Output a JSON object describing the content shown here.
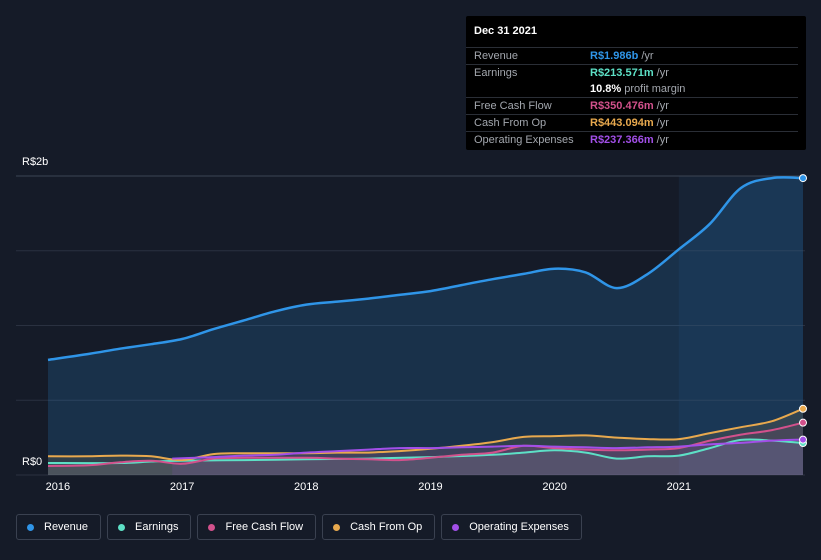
{
  "tooltip": {
    "date": "Dec 31 2021",
    "rows": [
      {
        "label": "Revenue",
        "value": "R$1.986b",
        "unit": " /yr",
        "color": "#2f95e8"
      },
      {
        "label": "Earnings",
        "value": "R$213.571m",
        "unit": " /yr",
        "color": "#5de0c6"
      },
      {
        "label": "",
        "value": "10.8%",
        "unit": " profit margin",
        "color": "#ffffff"
      },
      {
        "label": "Free Cash Flow",
        "value": "R$350.476m",
        "unit": " /yr",
        "color": "#d2518c"
      },
      {
        "label": "Cash From Op",
        "value": "R$443.094m",
        "unit": " /yr",
        "color": "#e8a94e"
      },
      {
        "label": "Operating Expenses",
        "value": "R$237.366m",
        "unit": " /yr",
        "color": "#a24fe8"
      }
    ]
  },
  "legend": [
    {
      "name": "Revenue",
      "color": "#2f95e8"
    },
    {
      "name": "Earnings",
      "color": "#5de0c6"
    },
    {
      "name": "Free Cash Flow",
      "color": "#d2518c"
    },
    {
      "name": "Cash From Op",
      "color": "#e8a94e"
    },
    {
      "name": "Operating Expenses",
      "color": "#a24fe8"
    }
  ],
  "chart_data": {
    "type": "area",
    "ylim": [
      0,
      2000
    ],
    "y_tick_labels": [
      {
        "value": 2000,
        "label": "R$2b"
      },
      {
        "value": 0,
        "label": "R$0"
      }
    ],
    "xlim": [
      2015.92,
      2022.0
    ],
    "x_tick_labels": [
      "2016",
      "2017",
      "2018",
      "2019",
      "2020",
      "2021"
    ],
    "x_tick_values": [
      2016,
      2017,
      2018,
      2019,
      2020,
      2021
    ],
    "highlight_from": 2021.0,
    "grid": true,
    "series": [
      {
        "name": "Revenue",
        "color": "#2f95e8",
        "points": [
          [
            2015.92,
            770
          ],
          [
            2016.25,
            810
          ],
          [
            2016.5,
            845
          ],
          [
            2016.75,
            875
          ],
          [
            2017.0,
            910
          ],
          [
            2017.25,
            975
          ],
          [
            2017.5,
            1035
          ],
          [
            2017.75,
            1095
          ],
          [
            2018.0,
            1140
          ],
          [
            2018.25,
            1160
          ],
          [
            2018.5,
            1180
          ],
          [
            2018.75,
            1205
          ],
          [
            2019.0,
            1230
          ],
          [
            2019.25,
            1270
          ],
          [
            2019.5,
            1310
          ],
          [
            2019.75,
            1345
          ],
          [
            2020.0,
            1380
          ],
          [
            2020.25,
            1355
          ],
          [
            2020.5,
            1250
          ],
          [
            2020.75,
            1345
          ],
          [
            2021.0,
            1510
          ],
          [
            2021.25,
            1680
          ],
          [
            2021.5,
            1920
          ],
          [
            2021.75,
            1986
          ],
          [
            2022.0,
            1986
          ]
        ]
      },
      {
        "name": "Earnings",
        "color": "#5de0c6",
        "points": [
          [
            2015.92,
            80
          ],
          [
            2016.5,
            80
          ],
          [
            2016.75,
            90
          ],
          [
            2017.0,
            95
          ],
          [
            2017.5,
            100
          ],
          [
            2018.0,
            105
          ],
          [
            2018.5,
            110
          ],
          [
            2019.0,
            120
          ],
          [
            2019.5,
            135
          ],
          [
            2019.75,
            150
          ],
          [
            2020.0,
            165
          ],
          [
            2020.25,
            150
          ],
          [
            2020.5,
            110
          ],
          [
            2020.75,
            125
          ],
          [
            2021.0,
            130
          ],
          [
            2021.25,
            180
          ],
          [
            2021.5,
            235
          ],
          [
            2021.75,
            230
          ],
          [
            2022.0,
            214
          ]
        ]
      },
      {
        "name": "Free Cash Flow",
        "color": "#d2518c",
        "points": [
          [
            2015.92,
            60
          ],
          [
            2016.25,
            65
          ],
          [
            2016.5,
            85
          ],
          [
            2016.75,
            95
          ],
          [
            2017.0,
            75
          ],
          [
            2017.25,
            110
          ],
          [
            2017.5,
            115
          ],
          [
            2018.0,
            115
          ],
          [
            2018.25,
            110
          ],
          [
            2018.5,
            105
          ],
          [
            2018.75,
            100
          ],
          [
            2019.0,
            115
          ],
          [
            2019.25,
            135
          ],
          [
            2019.5,
            150
          ],
          [
            2019.75,
            195
          ],
          [
            2020.0,
            180
          ],
          [
            2020.25,
            170
          ],
          [
            2020.5,
            165
          ],
          [
            2020.75,
            170
          ],
          [
            2021.0,
            180
          ],
          [
            2021.25,
            230
          ],
          [
            2021.5,
            270
          ],
          [
            2021.75,
            300
          ],
          [
            2022.0,
            350
          ]
        ]
      },
      {
        "name": "Cash From Op",
        "color": "#e8a94e",
        "points": [
          [
            2015.92,
            125
          ],
          [
            2016.25,
            125
          ],
          [
            2016.5,
            130
          ],
          [
            2016.75,
            125
          ],
          [
            2017.0,
            100
          ],
          [
            2017.25,
            140
          ],
          [
            2017.5,
            145
          ],
          [
            2018.0,
            145
          ],
          [
            2018.25,
            150
          ],
          [
            2018.5,
            150
          ],
          [
            2018.75,
            160
          ],
          [
            2019.0,
            175
          ],
          [
            2019.25,
            195
          ],
          [
            2019.5,
            220
          ],
          [
            2019.75,
            255
          ],
          [
            2020.0,
            260
          ],
          [
            2020.25,
            265
          ],
          [
            2020.5,
            250
          ],
          [
            2020.75,
            240
          ],
          [
            2021.0,
            240
          ],
          [
            2021.25,
            280
          ],
          [
            2021.5,
            320
          ],
          [
            2021.75,
            360
          ],
          [
            2022.0,
            443
          ]
        ]
      },
      {
        "name": "Operating Expenses",
        "color": "#a24fe8",
        "points": [
          [
            2016.92,
            110
          ],
          [
            2017.25,
            120
          ],
          [
            2017.5,
            130
          ],
          [
            2017.75,
            135
          ],
          [
            2018.0,
            150
          ],
          [
            2018.25,
            160
          ],
          [
            2018.5,
            170
          ],
          [
            2018.75,
            180
          ],
          [
            2019.0,
            180
          ],
          [
            2019.25,
            185
          ],
          [
            2019.5,
            190
          ],
          [
            2019.75,
            195
          ],
          [
            2020.0,
            190
          ],
          [
            2020.25,
            185
          ],
          [
            2020.5,
            180
          ],
          [
            2020.75,
            185
          ],
          [
            2021.0,
            190
          ],
          [
            2021.25,
            205
          ],
          [
            2021.5,
            215
          ],
          [
            2021.75,
            230
          ],
          [
            2022.0,
            237
          ]
        ]
      }
    ]
  }
}
